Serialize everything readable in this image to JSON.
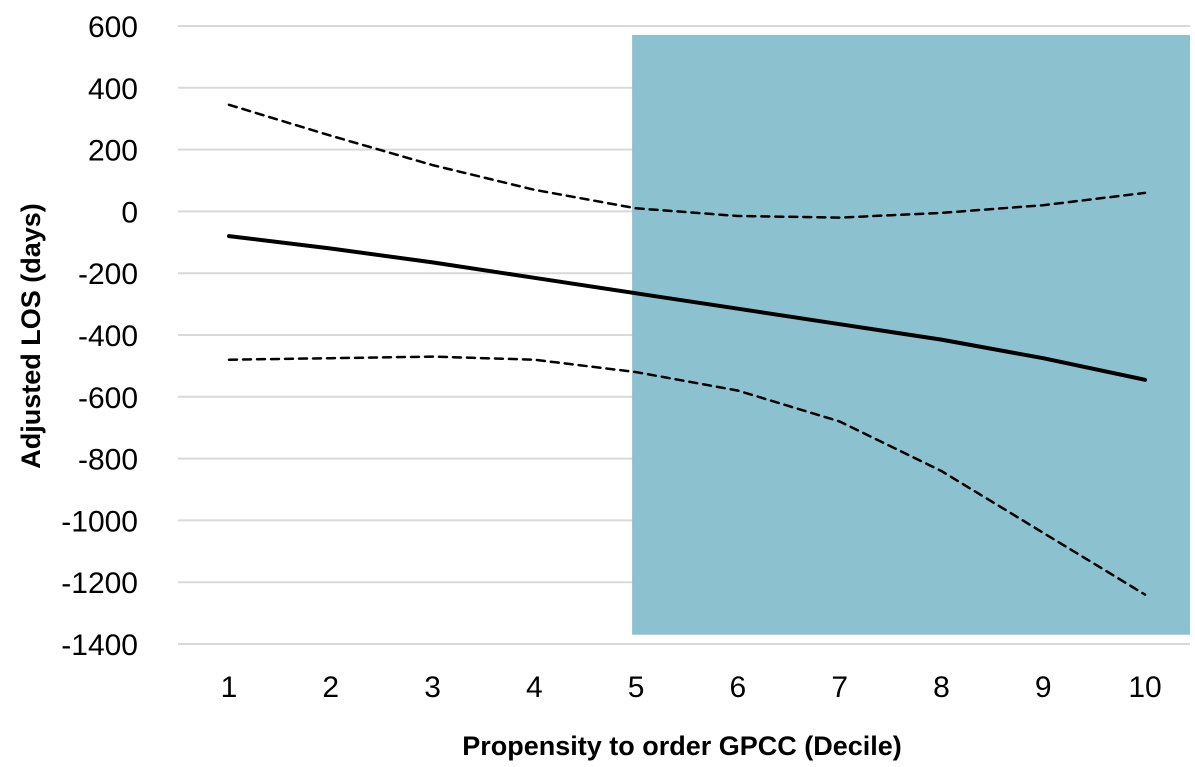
{
  "chart_data": {
    "type": "line",
    "title": "",
    "xlabel": "Propensity to order GPCC (Decile)",
    "ylabel": "Adjusted LOS (days)",
    "x": [
      1,
      2,
      3,
      4,
      5,
      6,
      7,
      8,
      9,
      10
    ],
    "ylim": [
      -1400,
      600
    ],
    "yticks": [
      600,
      400,
      200,
      0,
      -200,
      -400,
      -600,
      -800,
      -1000,
      -1200,
      -1400
    ],
    "grid": true,
    "highlight_region": {
      "x_start": 5,
      "x_end": 10,
      "color": "#8cc2cf"
    },
    "series": [
      {
        "style": "solid",
        "color": "#000000",
        "values": [
          -80,
          -120,
          -165,
          -215,
          -265,
          -315,
          -365,
          -415,
          -475,
          -545
        ]
      },
      {
        "style": "dashed",
        "color": "#000000",
        "values": [
          345,
          245,
          150,
          70,
          10,
          -15,
          -20,
          -5,
          20,
          60
        ]
      },
      {
        "style": "dashed",
        "color": "#000000",
        "values": [
          -480,
          -475,
          -470,
          -480,
          -520,
          -580,
          -680,
          -840,
          -1040,
          -1240
        ]
      }
    ]
  }
}
